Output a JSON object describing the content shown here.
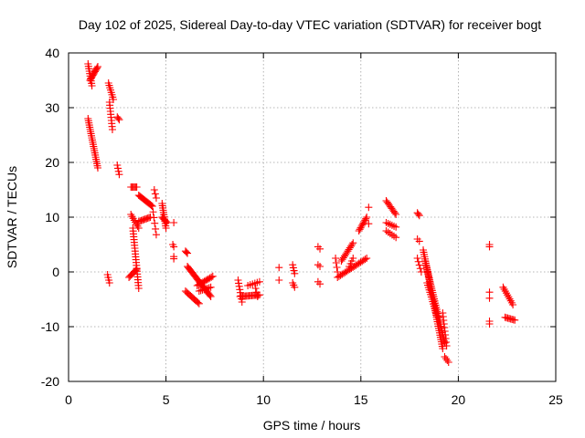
{
  "chart_data": {
    "type": "scatter",
    "title": "Day 102 of 2025, Sidereal Day-to-day VTEC variation (SDTVAR) for receiver bogt",
    "xlabel": "GPS time / hours",
    "ylabel": "SDTVAR / TECUs",
    "xlim": [
      0,
      25
    ],
    "ylim": [
      -20,
      40
    ],
    "xticks": [
      0,
      5,
      10,
      15,
      20,
      25
    ],
    "yticks": [
      -20,
      -10,
      0,
      10,
      20,
      30,
      40
    ],
    "xtick_labels": [
      "0",
      "5",
      "10",
      "15",
      "20",
      "25"
    ],
    "ytick_labels": [
      "-20",
      "-10",
      "0",
      "10",
      "20",
      "30",
      "40"
    ],
    "grid": true,
    "marker": "+",
    "marker_color": "#ff0000",
    "segments": [
      {
        "x0": 1.0,
        "y0": 38,
        "x1": 1.2,
        "y1": 34,
        "n": 10
      },
      {
        "x0": 1.1,
        "y0": 35,
        "x1": 1.5,
        "y1": 37.5,
        "n": 12
      },
      {
        "x0": 1.0,
        "y0": 28,
        "x1": 1.5,
        "y1": 19,
        "n": 24
      },
      {
        "x0": 2.05,
        "y0": 34.5,
        "x1": 2.3,
        "y1": 31.5,
        "n": 8
      },
      {
        "x0": 2.1,
        "y0": 31,
        "x1": 2.25,
        "y1": 26,
        "n": 10
      },
      {
        "x0": 2.5,
        "y0": 28.3,
        "x1": 2.6,
        "y1": 27.8,
        "n": 3
      },
      {
        "x0": 2.5,
        "y0": 19.5,
        "x1": 2.6,
        "y1": 17.8,
        "n": 4
      },
      {
        "x0": 2.0,
        "y0": -0.5,
        "x1": 2.1,
        "y1": -2,
        "n": 4
      },
      {
        "x0": 3.2,
        "y0": 15.5,
        "x1": 3.5,
        "y1": 15.5,
        "n": 6
      },
      {
        "x0": 3.2,
        "y0": 10.5,
        "x1": 3.6,
        "y1": 8,
        "n": 8
      },
      {
        "x0": 3.3,
        "y0": 8,
        "x1": 3.6,
        "y1": -3,
        "n": 22
      },
      {
        "x0": 3.1,
        "y0": -1,
        "x1": 3.5,
        "y1": 0.5,
        "n": 8
      },
      {
        "x0": 3.6,
        "y0": 14,
        "x1": 4.3,
        "y1": 12,
        "n": 14
      },
      {
        "x0": 3.6,
        "y0": 9.2,
        "x1": 4.2,
        "y1": 10,
        "n": 10
      },
      {
        "x0": 4.3,
        "y0": 12,
        "x1": 4.5,
        "y1": 6.8,
        "n": 6
      },
      {
        "x0": 4.4,
        "y0": 15,
        "x1": 4.5,
        "y1": 13.5,
        "n": 3
      },
      {
        "x0": 4.8,
        "y0": 12.5,
        "x1": 5.0,
        "y1": 8,
        "n": 12
      },
      {
        "x0": 4.8,
        "y0": 10,
        "x1": 5.05,
        "y1": 9,
        "n": 6
      },
      {
        "x0": 5.4,
        "y0": 9,
        "x1": 5.4,
        "y1": 9,
        "n": 1
      },
      {
        "x0": 5.35,
        "y0": 5,
        "x1": 5.4,
        "y1": 4.6,
        "n": 2
      },
      {
        "x0": 5.4,
        "y0": 2.8,
        "x1": 5.4,
        "y1": 2.4,
        "n": 2
      },
      {
        "x0": 6.0,
        "y0": 3.8,
        "x1": 6.1,
        "y1": 3.4,
        "n": 3
      },
      {
        "x0": 6.1,
        "y0": 1,
        "x1": 7.3,
        "y1": -4.5,
        "n": 26
      },
      {
        "x0": 6.0,
        "y0": -3.5,
        "x1": 6.7,
        "y1": -5.8,
        "n": 12
      },
      {
        "x0": 6.6,
        "y0": -2.5,
        "x1": 7.4,
        "y1": -0.8,
        "n": 12
      },
      {
        "x0": 6.7,
        "y0": -3.5,
        "x1": 7.3,
        "y1": -2.8,
        "n": 8
      },
      {
        "x0": 8.7,
        "y0": -1.5,
        "x1": 8.9,
        "y1": -5.5,
        "n": 8
      },
      {
        "x0": 8.8,
        "y0": -4.5,
        "x1": 9.8,
        "y1": -4.2,
        "n": 16
      },
      {
        "x0": 9.2,
        "y0": -2.5,
        "x1": 9.8,
        "y1": -1.8,
        "n": 6
      },
      {
        "x0": 9.6,
        "y0": -3,
        "x1": 9.7,
        "y1": -4.5,
        "n": 3
      },
      {
        "x0": 10.8,
        "y0": 0.8,
        "x1": 10.8,
        "y1": 0.8,
        "n": 1
      },
      {
        "x0": 10.8,
        "y0": -1.5,
        "x1": 10.8,
        "y1": -1.5,
        "n": 1
      },
      {
        "x0": 11.5,
        "y0": 1.3,
        "x1": 11.6,
        "y1": -0.3,
        "n": 4
      },
      {
        "x0": 11.5,
        "y0": -2,
        "x1": 11.6,
        "y1": -2.8,
        "n": 3
      },
      {
        "x0": 12.8,
        "y0": 4.6,
        "x1": 12.9,
        "y1": 4.2,
        "n": 2
      },
      {
        "x0": 12.8,
        "y0": 1.3,
        "x1": 12.9,
        "y1": 1.0,
        "n": 2
      },
      {
        "x0": 12.8,
        "y0": -1.8,
        "x1": 12.9,
        "y1": -2.2,
        "n": 2
      },
      {
        "x0": 13.7,
        "y0": 2.5,
        "x1": 13.8,
        "y1": 0,
        "n": 4
      },
      {
        "x0": 13.8,
        "y0": -1,
        "x1": 15.3,
        "y1": 2.5,
        "n": 20
      },
      {
        "x0": 14.0,
        "y0": 2,
        "x1": 14.6,
        "y1": 5.3,
        "n": 12
      },
      {
        "x0": 14.4,
        "y0": 1,
        "x1": 14.6,
        "y1": 2.5,
        "n": 4
      },
      {
        "x0": 14.9,
        "y0": 7.5,
        "x1": 15.3,
        "y1": 10,
        "n": 10
      },
      {
        "x0": 15.4,
        "y0": 11.8,
        "x1": 15.4,
        "y1": 11.8,
        "n": 1
      },
      {
        "x0": 15.4,
        "y0": 8.8,
        "x1": 15.4,
        "y1": 8.8,
        "n": 1
      },
      {
        "x0": 16.3,
        "y0": 13,
        "x1": 16.8,
        "y1": 10.5,
        "n": 10
      },
      {
        "x0": 16.3,
        "y0": 9,
        "x1": 16.8,
        "y1": 8.2,
        "n": 6
      },
      {
        "x0": 16.3,
        "y0": 7.5,
        "x1": 16.8,
        "y1": 6.3,
        "n": 6
      },
      {
        "x0": 17.9,
        "y0": 10.8,
        "x1": 18.0,
        "y1": 10.3,
        "n": 3
      },
      {
        "x0": 17.9,
        "y0": 6,
        "x1": 18.0,
        "y1": 5.6,
        "n": 2
      },
      {
        "x0": 17.9,
        "y0": 2.5,
        "x1": 18.1,
        "y1": 0,
        "n": 5
      },
      {
        "x0": 18.2,
        "y0": 4,
        "x1": 19.2,
        "y1": -14,
        "n": 45
      },
      {
        "x0": 18.3,
        "y0": 2,
        "x1": 19.3,
        "y1": -13,
        "n": 40
      },
      {
        "x0": 18.4,
        "y0": -2,
        "x1": 18.9,
        "y1": -8,
        "n": 15
      },
      {
        "x0": 19.2,
        "y0": -7.5,
        "x1": 19.4,
        "y1": -13.5,
        "n": 10
      },
      {
        "x0": 19.3,
        "y0": -15.5,
        "x1": 19.5,
        "y1": -16.5,
        "n": 4
      },
      {
        "x0": 21.6,
        "y0": 5,
        "x1": 21.6,
        "y1": 4.6,
        "n": 2
      },
      {
        "x0": 21.6,
        "y0": -3.7,
        "x1": 21.6,
        "y1": -4.8,
        "n": 2
      },
      {
        "x0": 21.6,
        "y0": -9,
        "x1": 21.6,
        "y1": -9.5,
        "n": 2
      },
      {
        "x0": 22.3,
        "y0": -2.8,
        "x1": 22.8,
        "y1": -6,
        "n": 10
      },
      {
        "x0": 22.4,
        "y0": -8.3,
        "x1": 22.9,
        "y1": -8.8,
        "n": 8
      }
    ]
  }
}
